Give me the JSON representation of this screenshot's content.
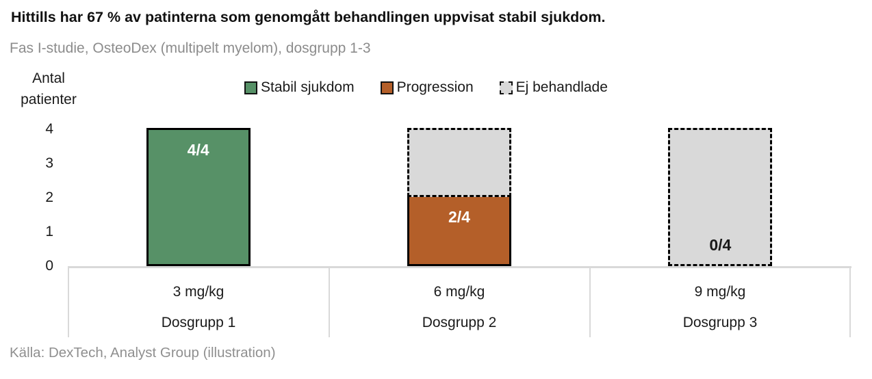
{
  "page": {
    "title": "Hittills har 67 % av patinterna som genomgått behandlingen uppvisat stabil sjukdom.",
    "subtitle": "Fas I-studie, OsteoDex (multipelt myelom), dosgrupp 1-3",
    "source": "Källa: DexTech, Analyst Group (illustration)"
  },
  "chart_data": {
    "type": "bar",
    "stacked": true,
    "title": "Hittills har 67 % av patinterna som genomgått behandlingen uppvisat stabil sjukdom.",
    "subtitle": "Fas I-studie, OsteoDex (multipelt myelom), dosgrupp 1-3",
    "ylabel": "Antal patienter",
    "ylim": [
      0,
      4
    ],
    "yticks": [
      4,
      3,
      2,
      1,
      0
    ],
    "grid": false,
    "legend_position": "top",
    "categories": [
      {
        "dose": "3 mg/kg",
        "group": "Dosgrupp 1"
      },
      {
        "dose": "6 mg/kg",
        "group": "Dosgrupp 2"
      },
      {
        "dose": "9 mg/kg",
        "group": "Dosgrupp 3"
      }
    ],
    "series": [
      {
        "name": "Stabil sjukdom",
        "color": "#579167",
        "border": "solid",
        "values": [
          4,
          0,
          0
        ],
        "labels": [
          "4/4",
          "",
          ""
        ],
        "label_pos": "top",
        "label_color": "#ffffff"
      },
      {
        "name": "Progression",
        "color": "#B45F29",
        "border": "solid",
        "values": [
          0,
          2,
          0
        ],
        "labels": [
          "",
          "2/4",
          ""
        ],
        "label_pos": "top",
        "label_color": "#ffffff"
      },
      {
        "name": "Ej behandlade",
        "color": "#D9D9D9",
        "border": "dashed",
        "values": [
          0,
          2,
          4
        ],
        "labels": [
          "",
          "",
          "0/4"
        ],
        "label_pos": "bottom",
        "label_color": "#1a1a1a"
      }
    ]
  },
  "colors": {
    "stable_green": "#579167",
    "progression_orange": "#B45F29",
    "untreated_gray": "#D9D9D9",
    "axis_gray": "#D9D9D9",
    "muted_text": "#8c8c8c"
  }
}
